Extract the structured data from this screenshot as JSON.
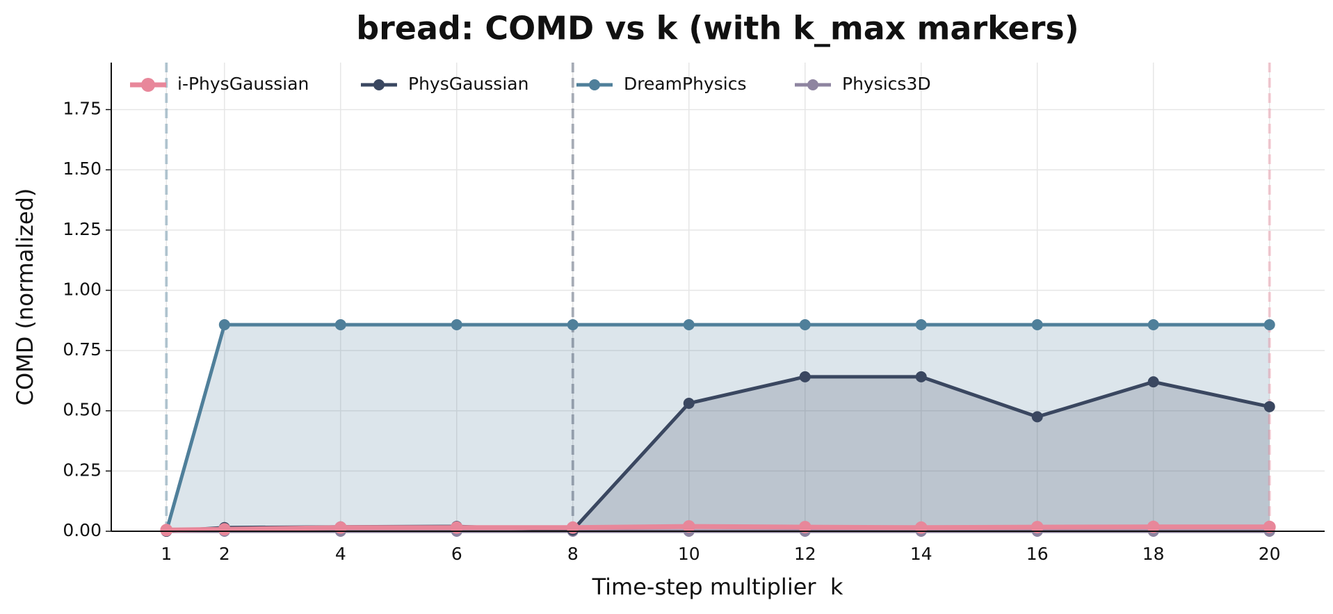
{
  "chart_data": {
    "type": "line",
    "title": "bread: COMD vs k (with k_max markers)",
    "xlabel": "Time-step multiplier  k",
    "ylabel": "COMD (normalized)",
    "x": [
      1,
      2,
      4,
      6,
      8,
      10,
      12,
      14,
      16,
      18,
      20
    ],
    "series": [
      {
        "name": "i-PhysGaussian",
        "color": "#e8879a",
        "k_max": 20,
        "values": [
          0.005,
          0.008,
          0.015,
          0.015,
          0.015,
          0.02,
          0.017,
          0.015,
          0.017,
          0.018,
          0.018
        ]
      },
      {
        "name": "PhysGaussian",
        "color": "#3a4760",
        "k_max": 8,
        "values": [
          0,
          0.015,
          0.018,
          0.02,
          0.005,
          0.531,
          0.641,
          0.641,
          0.475,
          0.62,
          0.517
        ]
      },
      {
        "name": "DreamPhysics",
        "color": "#4f7f9a",
        "k_max": 1,
        "values": [
          0,
          0.857,
          0.857,
          0.857,
          0.857,
          0.857,
          0.857,
          0.857,
          0.857,
          0.857,
          0.857
        ]
      },
      {
        "name": "Physics3D",
        "color": "#8e84a0",
        "values": [
          0,
          0,
          0,
          0,
          0,
          0,
          0,
          0,
          0,
          0,
          0
        ]
      }
    ],
    "xlim": [
      0.05,
      20.95
    ],
    "xticks": [
      1,
      2,
      4,
      6,
      8,
      10,
      12,
      14,
      16,
      18,
      20
    ],
    "ylim": [
      0,
      1.945
    ],
    "yticks": [
      {
        "value": 0,
        "label": "0.00"
      },
      {
        "value": 0.25,
        "label": "0.25"
      },
      {
        "value": 0.5,
        "label": "0.50"
      },
      {
        "value": 0.75,
        "label": "0.75"
      },
      {
        "value": 1,
        "label": "1.00"
      },
      {
        "value": 1.25,
        "label": "1.25"
      },
      {
        "value": 1.5,
        "label": "1.50"
      },
      {
        "value": 1.75,
        "label": "1.75"
      }
    ],
    "grid": true,
    "legend": "upper left"
  }
}
